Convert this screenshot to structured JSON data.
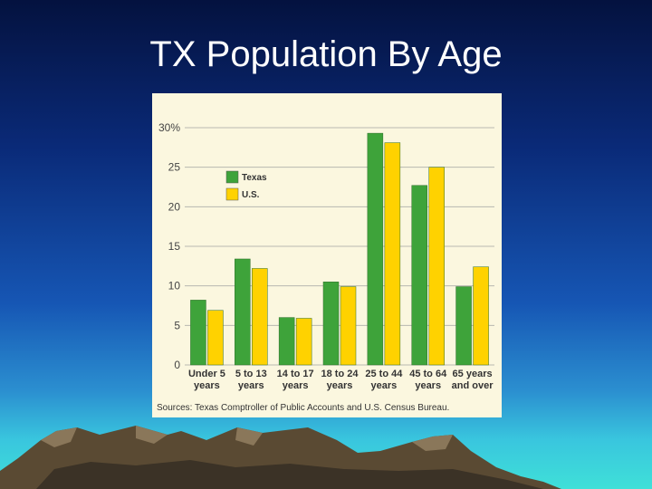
{
  "slide": {
    "title": "TX Population By Age"
  },
  "chart_data": {
    "type": "bar",
    "categories": [
      [
        "Under 5",
        "years"
      ],
      [
        "5 to 13",
        "years"
      ],
      [
        "14 to 17",
        "years"
      ],
      [
        "18 to 24",
        "years"
      ],
      [
        "25 to 44",
        "years"
      ],
      [
        "45 to 64",
        "years"
      ],
      [
        "65 years",
        "and over"
      ]
    ],
    "series": [
      {
        "name": "Texas",
        "color": "#3ea33a",
        "values": [
          8.2,
          13.4,
          6.0,
          10.5,
          29.3,
          22.7,
          9.9
        ]
      },
      {
        "name": "U.S.",
        "color": "#ffd200",
        "values": [
          6.9,
          12.2,
          5.9,
          9.9,
          28.1,
          25.0,
          12.4
        ]
      }
    ],
    "y_ticks": [
      "0",
      "5",
      "10",
      "15",
      "20",
      "25",
      "30%"
    ],
    "ylim": [
      0,
      30
    ],
    "grid": true,
    "legend_position": "top-left",
    "source": "Sources: Texas Comptroller of Public Accounts and U.S. Census Bureau."
  }
}
